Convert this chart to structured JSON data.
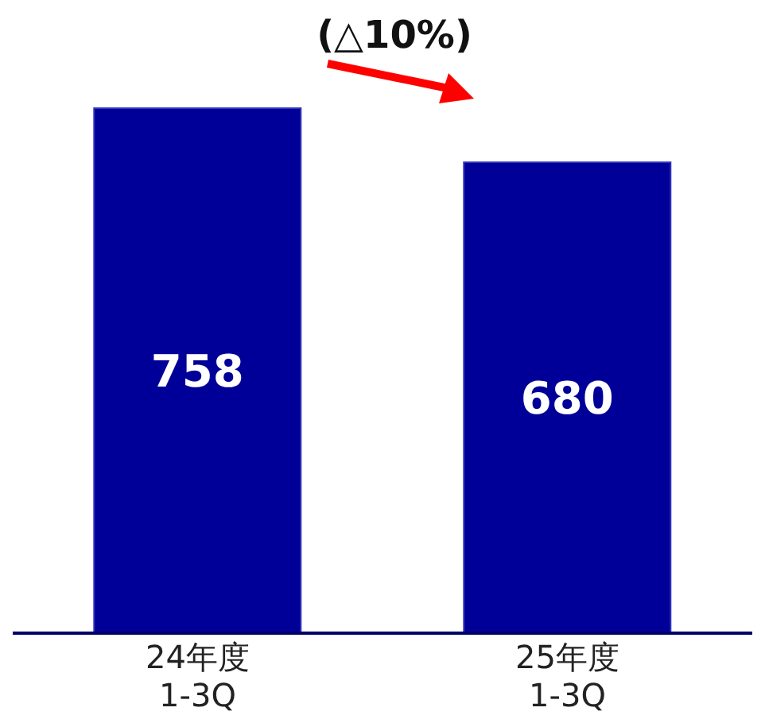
{
  "chart_data": {
    "type": "bar",
    "categories": [
      "24年度\n1-3Q",
      "25年度\n1-3Q"
    ],
    "values": [
      758,
      680
    ],
    "color": "#000099",
    "data_labels": true,
    "annotations": [
      "(△10%)"
    ]
  }
}
